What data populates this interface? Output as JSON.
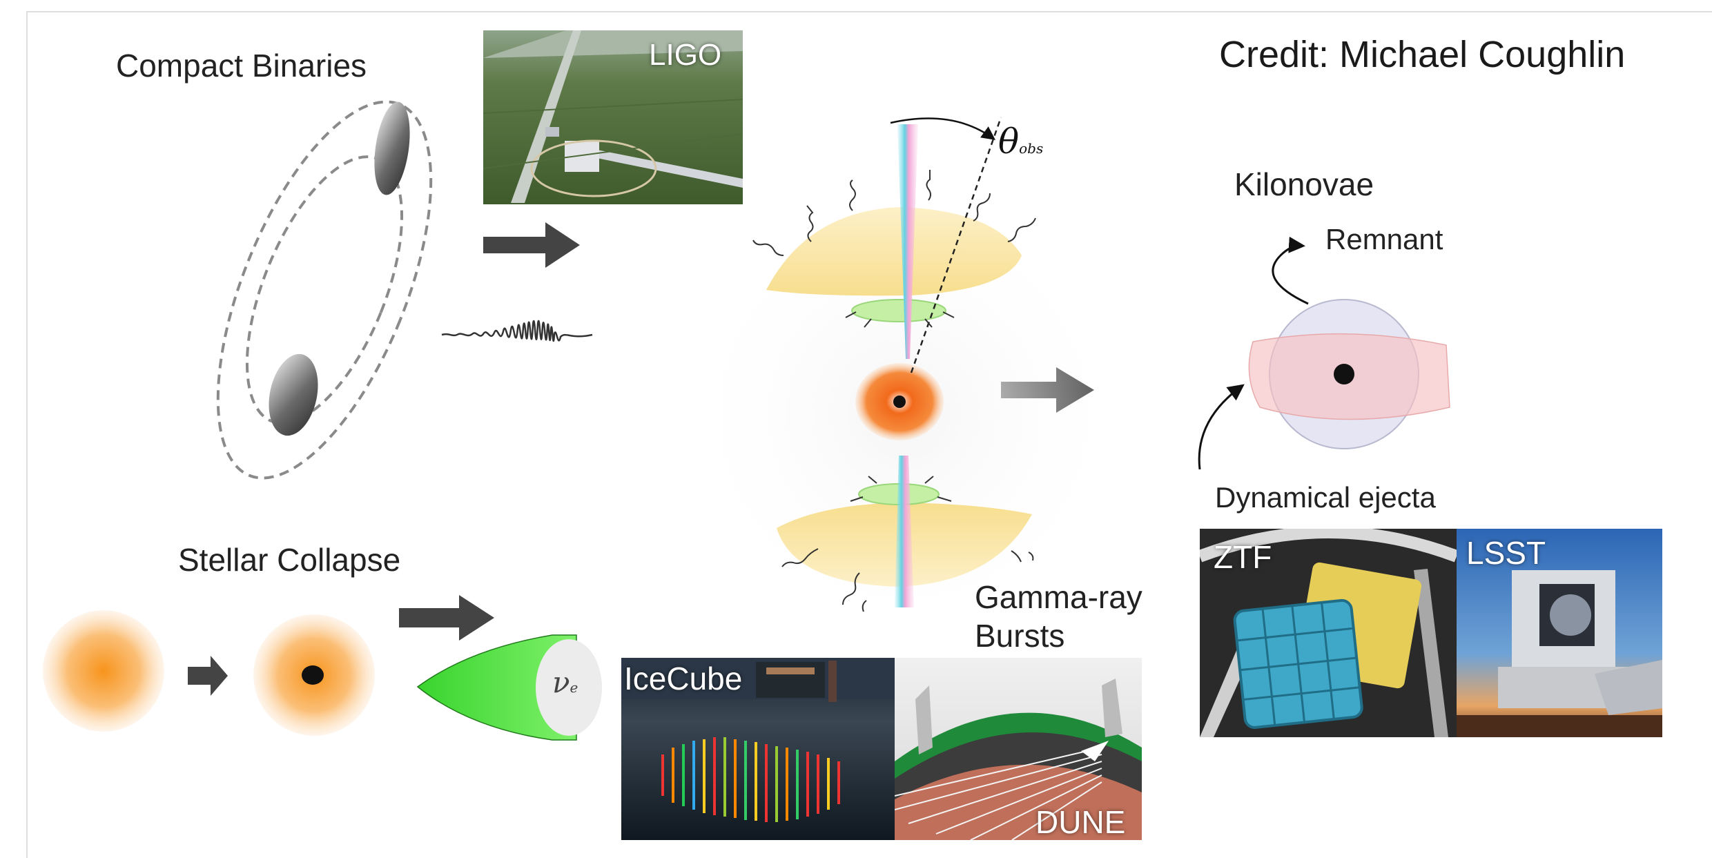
{
  "credit": "Credit: Michael Coughlin",
  "labels": {
    "compact_binaries": "Compact Binaries",
    "stellar_collapse": "Stellar Collapse",
    "kilonovae": "Kilonovae",
    "remnant": "Remnant",
    "dynamical_ejecta": "Dynamical ejecta",
    "gamma_ray": "Gamma-ray",
    "bursts": "Bursts",
    "theta": "θ",
    "theta_sub": "obs",
    "neutrino": "ν",
    "neutrino_sub": "e"
  },
  "photos": {
    "ligo": "LIGO",
    "icecube": "IceCube",
    "dune": "DUNE",
    "ztf": "ZTF",
    "lsst": "LSST"
  }
}
